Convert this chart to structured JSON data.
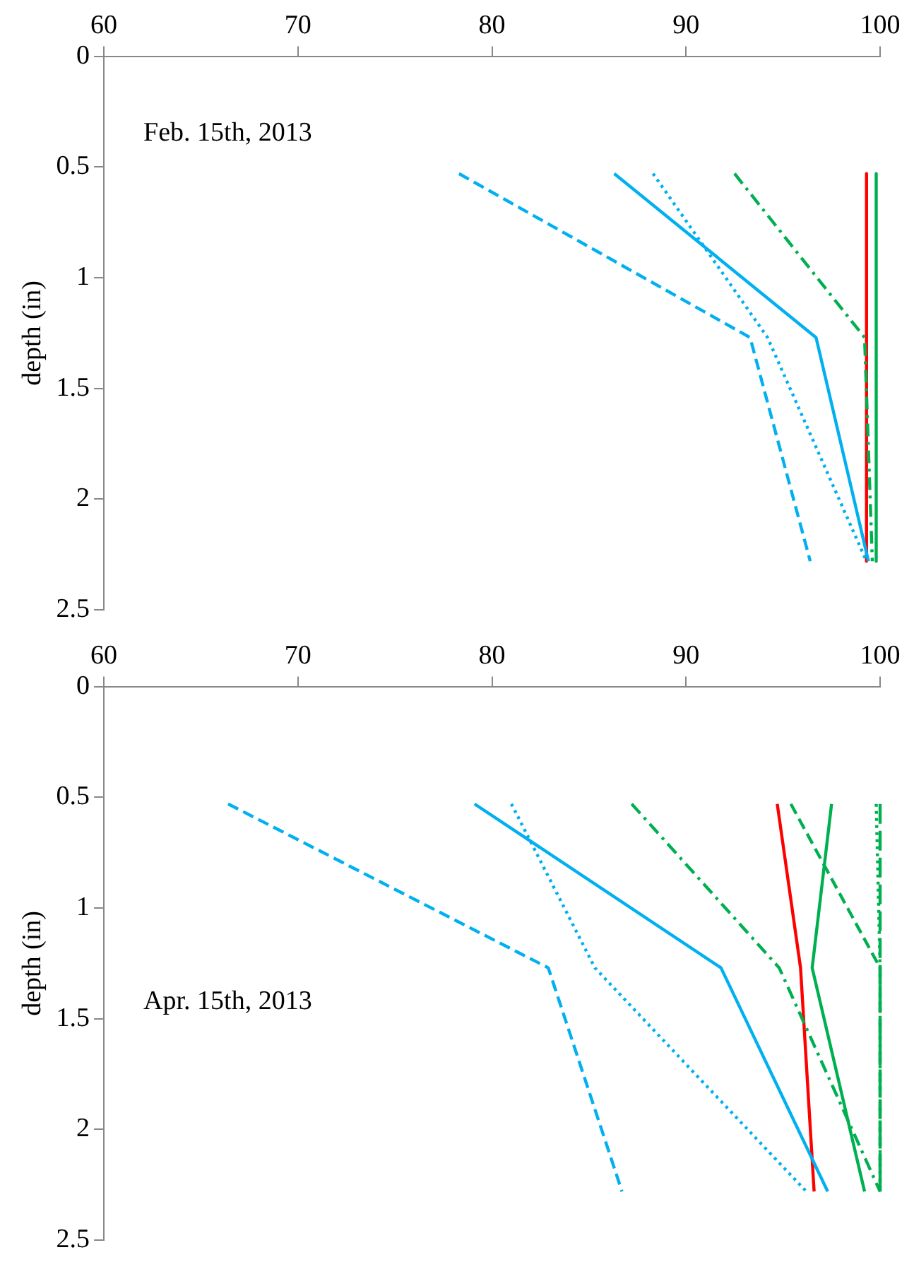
{
  "chart_data": [
    {
      "type": "line",
      "ylabel": "depth (in)",
      "annotations": [
        "Feb. 15th, 2013"
      ],
      "xlim": [
        60,
        100
      ],
      "xticks": [
        60,
        70,
        80,
        90,
        100
      ],
      "ylim": [
        2.5,
        0
      ],
      "yticks": [
        0,
        0.5,
        1,
        1.5,
        2,
        2.5
      ],
      "grid": false,
      "legend": false,
      "marker": "none",
      "series": [
        {
          "color": "#00b0f0",
          "line_style": "dashed",
          "x": [
            78.3,
            93.3,
            96.4
          ],
          "values": [
            0.53,
            1.27,
            2.28
          ]
        },
        {
          "color": "#00b0f0",
          "line_style": "solid",
          "x": [
            86.3,
            96.7,
            99.4
          ],
          "values": [
            0.53,
            1.27,
            2.28
          ]
        },
        {
          "color": "#00b0f0",
          "line_style": "dotted",
          "x": [
            88.3,
            94.2,
            99.3
          ],
          "values": [
            0.53,
            1.27,
            2.28
          ]
        },
        {
          "color": "#00b050",
          "line_style": "dashdot",
          "x": [
            92.5,
            99.2,
            99.6
          ],
          "values": [
            0.53,
            1.27,
            2.28
          ]
        },
        {
          "color": "#ff0000",
          "line_style": "solid",
          "x": [
            99.3,
            99.3,
            99.3
          ],
          "values": [
            0.53,
            1.27,
            2.28
          ]
        },
        {
          "color": "#00b050",
          "line_style": "solid",
          "x": [
            99.8,
            99.8,
            99.8
          ],
          "values": [
            0.53,
            1.27,
            2.28
          ]
        }
      ]
    },
    {
      "type": "line",
      "ylabel": "depth (in)",
      "annotations": [
        "Apr. 15th, 2013"
      ],
      "xlim": [
        60,
        100
      ],
      "xticks": [
        60,
        70,
        80,
        90,
        100
      ],
      "ylim": [
        2.5,
        0
      ],
      "yticks": [
        0,
        0.5,
        1,
        1.5,
        2,
        2.5
      ],
      "grid": false,
      "legend": false,
      "marker": "none",
      "series": [
        {
          "color": "#00b0f0",
          "line_style": "dashed",
          "x": [
            66.4,
            82.9,
            86.7
          ],
          "values": [
            0.53,
            1.27,
            2.28
          ]
        },
        {
          "color": "#00b0f0",
          "line_style": "solid",
          "x": [
            79.1,
            91.8,
            97.3
          ],
          "values": [
            0.53,
            1.27,
            2.28
          ]
        },
        {
          "color": "#00b0f0",
          "line_style": "dotted",
          "x": [
            81.0,
            85.3,
            96.2
          ],
          "values": [
            0.53,
            1.27,
            2.28
          ]
        },
        {
          "color": "#00b050",
          "line_style": "dashdot",
          "x": [
            87.2,
            94.8,
            100
          ],
          "values": [
            0.53,
            1.27,
            2.28
          ]
        },
        {
          "color": "#ff0000",
          "line_style": "solid",
          "x": [
            94.7,
            95.9,
            96.6
          ],
          "values": [
            0.53,
            1.27,
            2.28
          ]
        },
        {
          "color": "#00b050",
          "line_style": "solid",
          "x": [
            97.5,
            96.5,
            99.2
          ],
          "values": [
            0.53,
            1.27,
            2.28
          ]
        },
        {
          "color": "#00b050",
          "line_style": "dashed",
          "x": [
            95.4,
            100,
            100
          ],
          "values": [
            0.53,
            1.27,
            2.28
          ]
        },
        {
          "color": "#00b050",
          "line_style": "dotted",
          "x": [
            99.8,
            100,
            100
          ],
          "values": [
            0.53,
            1.27,
            2.28
          ]
        },
        {
          "color": "#00b050",
          "line_style": "longdash",
          "x": [
            100,
            100,
            100
          ],
          "values": [
            0.53,
            1.27,
            2.28
          ]
        }
      ]
    }
  ]
}
